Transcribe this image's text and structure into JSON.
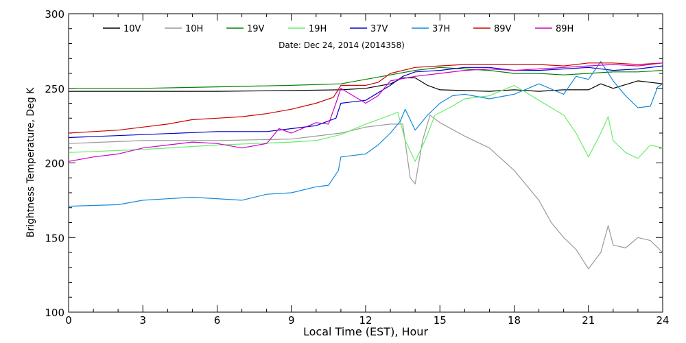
{
  "chart_data": {
    "type": "line",
    "title": "Date: Dec 24, 2014 (2014358)",
    "xlabel": "Local Time (EST), Hour",
    "ylabel": "Brightness Temperature, Deg K",
    "xlim": [
      0,
      24
    ],
    "ylim": [
      100,
      300
    ],
    "xticks": [
      0,
      3,
      6,
      9,
      12,
      15,
      18,
      21,
      24
    ],
    "yticks": [
      100,
      150,
      200,
      250,
      300
    ],
    "grid": false,
    "legend_position": "top",
    "series": [
      {
        "name": "10V",
        "color": "#000000",
        "points": [
          [
            0,
            248
          ],
          [
            3,
            248
          ],
          [
            6,
            248
          ],
          [
            9,
            248.5
          ],
          [
            11,
            249
          ],
          [
            12,
            250
          ],
          [
            13,
            253
          ],
          [
            13.5,
            257
          ],
          [
            14,
            257
          ],
          [
            14.5,
            252
          ],
          [
            15,
            249
          ],
          [
            17,
            248
          ],
          [
            18,
            249
          ],
          [
            19,
            248
          ],
          [
            20,
            249
          ],
          [
            21,
            249
          ],
          [
            21.5,
            253
          ],
          [
            22,
            250
          ],
          [
            23,
            255
          ],
          [
            24,
            253
          ]
        ]
      },
      {
        "name": "10H",
        "color": "#999999",
        "points": [
          [
            0,
            213
          ],
          [
            3,
            215
          ],
          [
            6,
            215
          ],
          [
            9,
            216
          ],
          [
            10,
            218
          ],
          [
            11,
            220
          ],
          [
            12,
            224
          ],
          [
            13,
            226
          ],
          [
            13.5,
            226
          ],
          [
            13.8,
            190
          ],
          [
            14,
            186
          ],
          [
            14.3,
            215
          ],
          [
            14.6,
            232
          ],
          [
            15,
            227
          ],
          [
            16,
            218
          ],
          [
            17,
            210
          ],
          [
            18,
            195
          ],
          [
            19,
            175
          ],
          [
            19.5,
            160
          ],
          [
            20,
            150
          ],
          [
            20.5,
            142
          ],
          [
            21,
            129
          ],
          [
            21.5,
            140
          ],
          [
            21.8,
            158
          ],
          [
            22,
            145
          ],
          [
            22.5,
            143
          ],
          [
            23,
            150
          ],
          [
            23.5,
            148
          ],
          [
            24,
            140
          ]
        ]
      },
      {
        "name": "19V",
        "color": "#008000",
        "points": [
          [
            0,
            250
          ],
          [
            3,
            250
          ],
          [
            6,
            251
          ],
          [
            9,
            252
          ],
          [
            11,
            253
          ],
          [
            12,
            256
          ],
          [
            13,
            259
          ],
          [
            14,
            262
          ],
          [
            15,
            264
          ],
          [
            16,
            263
          ],
          [
            17,
            262
          ],
          [
            18,
            260
          ],
          [
            19,
            260
          ],
          [
            20,
            259
          ],
          [
            21,
            260
          ],
          [
            22,
            261
          ],
          [
            23,
            261
          ],
          [
            24,
            262
          ]
        ]
      },
      {
        "name": "19H",
        "color": "#66ee66",
        "points": [
          [
            0,
            207
          ],
          [
            3,
            209
          ],
          [
            6,
            212
          ],
          [
            9,
            214
          ],
          [
            10,
            215
          ],
          [
            11,
            219
          ],
          [
            12,
            226
          ],
          [
            13,
            232
          ],
          [
            13.3,
            234
          ],
          [
            13.6,
            215
          ],
          [
            14,
            201
          ],
          [
            14.4,
            215
          ],
          [
            14.8,
            232
          ],
          [
            15.5,
            238
          ],
          [
            16,
            243
          ],
          [
            17,
            245
          ],
          [
            18,
            252
          ],
          [
            19,
            242
          ],
          [
            20,
            232
          ],
          [
            20.5,
            220
          ],
          [
            21,
            204
          ],
          [
            21.5,
            220
          ],
          [
            21.8,
            231
          ],
          [
            22,
            215
          ],
          [
            22.5,
            207
          ],
          [
            23,
            203
          ],
          [
            23.5,
            212
          ],
          [
            24,
            210
          ]
        ]
      },
      {
        "name": "37V",
        "color": "#0000cc",
        "points": [
          [
            0,
            217
          ],
          [
            3,
            219
          ],
          [
            6,
            221
          ],
          [
            8,
            221
          ],
          [
            9,
            223
          ],
          [
            10,
            225
          ],
          [
            10.8,
            230
          ],
          [
            11,
            240
          ],
          [
            12,
            242
          ],
          [
            13,
            252
          ],
          [
            13.5,
            258
          ],
          [
            14,
            261
          ],
          [
            15,
            262
          ],
          [
            16,
            264
          ],
          [
            17,
            264
          ],
          [
            18,
            262
          ],
          [
            19,
            262
          ],
          [
            20,
            263
          ],
          [
            21,
            264
          ],
          [
            22,
            262
          ],
          [
            23,
            263
          ],
          [
            24,
            265
          ]
        ]
      },
      {
        "name": "37H",
        "color": "#1188dd",
        "points": [
          [
            0,
            171
          ],
          [
            2,
            172
          ],
          [
            3,
            175
          ],
          [
            5,
            177
          ],
          [
            7,
            175
          ],
          [
            8,
            179
          ],
          [
            9,
            180
          ],
          [
            10,
            184
          ],
          [
            10.5,
            185
          ],
          [
            10.9,
            195
          ],
          [
            11,
            204
          ],
          [
            12,
            206
          ],
          [
            12.5,
            212
          ],
          [
            13,
            220
          ],
          [
            13.4,
            228
          ],
          [
            13.6,
            236
          ],
          [
            14,
            222
          ],
          [
            14.5,
            232
          ],
          [
            15,
            240
          ],
          [
            15.5,
            245
          ],
          [
            16,
            246
          ],
          [
            17,
            243
          ],
          [
            18,
            246
          ],
          [
            19,
            253
          ],
          [
            20,
            246
          ],
          [
            20.5,
            258
          ],
          [
            21,
            256
          ],
          [
            21.5,
            268
          ],
          [
            22,
            255
          ],
          [
            22.5,
            245
          ],
          [
            23,
            237
          ],
          [
            23.5,
            238
          ],
          [
            23.8,
            251
          ],
          [
            24,
            253
          ]
        ]
      },
      {
        "name": "89V",
        "color": "#cc0000",
        "points": [
          [
            0,
            220
          ],
          [
            1,
            221
          ],
          [
            2,
            222
          ],
          [
            3,
            224
          ],
          [
            4,
            226
          ],
          [
            5,
            229
          ],
          [
            6,
            230
          ],
          [
            7,
            231
          ],
          [
            8,
            233
          ],
          [
            9,
            236
          ],
          [
            10,
            240
          ],
          [
            10.7,
            244
          ],
          [
            11,
            252
          ],
          [
            12,
            252
          ],
          [
            12.5,
            254
          ],
          [
            13,
            260
          ],
          [
            14,
            264
          ],
          [
            15,
            265
          ],
          [
            16,
            266
          ],
          [
            17,
            266
          ],
          [
            18,
            266
          ],
          [
            19,
            266
          ],
          [
            20,
            265
          ],
          [
            21,
            267
          ],
          [
            22,
            267
          ],
          [
            23,
            266
          ],
          [
            24,
            267
          ]
        ]
      },
      {
        "name": "89H",
        "color": "#cc00cc",
        "points": [
          [
            0,
            201
          ],
          [
            1,
            204
          ],
          [
            2,
            206
          ],
          [
            3,
            210
          ],
          [
            4,
            212
          ],
          [
            5,
            214
          ],
          [
            6,
            213
          ],
          [
            7,
            210
          ],
          [
            8,
            213
          ],
          [
            8.5,
            223
          ],
          [
            9,
            220
          ],
          [
            10,
            227
          ],
          [
            10.5,
            226
          ],
          [
            10.8,
            240
          ],
          [
            11,
            250
          ],
          [
            12,
            240
          ],
          [
            12.5,
            245
          ],
          [
            13,
            255
          ],
          [
            14,
            258
          ],
          [
            15,
            260
          ],
          [
            16,
            262
          ],
          [
            17,
            263
          ],
          [
            18,
            262
          ],
          [
            19,
            263
          ],
          [
            20,
            264
          ],
          [
            21,
            265
          ],
          [
            22,
            266
          ],
          [
            23,
            265
          ],
          [
            24,
            267
          ]
        ]
      }
    ]
  }
}
